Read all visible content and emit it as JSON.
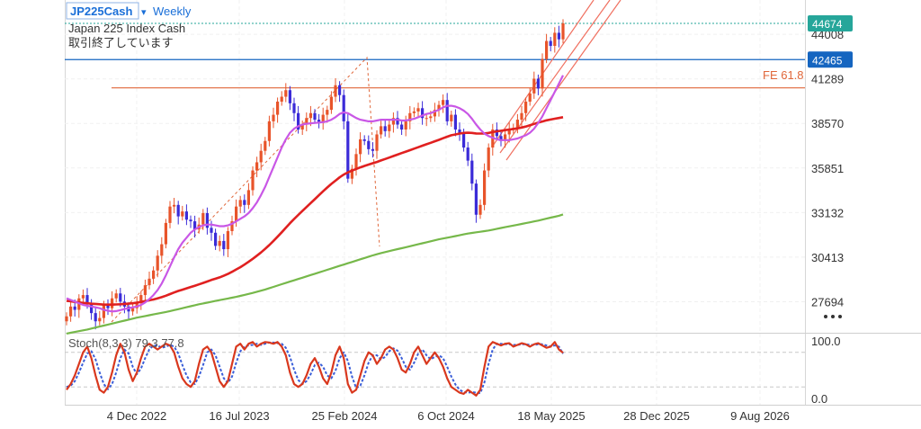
{
  "header": {
    "symbol": "JP225Cash",
    "dropdown_glyph": "▾",
    "interval": "Weekly",
    "description": "Japan 225 Index Cash",
    "status": "取引終了しています"
  },
  "price_badges": {
    "last": "44674",
    "level": "42465",
    "last_color": "#26a69a",
    "level_color": "#1565c0"
  },
  "fib_label": "FE 61.8",
  "more_icon": "more-horizontal-icon",
  "stoch_label": "Stoch(8,3,3) 79.3 77.8",
  "colors": {
    "up": "#e8542a",
    "down": "#3b2bd8",
    "ma_red": "#e02020",
    "ma_green": "#76b84a",
    "ma_violet": "#c957e6",
    "fib_line": "#e0673a",
    "channel": "#f07060",
    "stoch_k": "#d9381e",
    "stoch_d": "#3a5ed8"
  },
  "chart_data": [
    {
      "type": "candlestick",
      "x_ticks": [
        "4 Dec 2022",
        "16 Jul 2023",
        "25 Feb 2024",
        "6 Oct 2024",
        "18 May 2025",
        "28 Dec 2025",
        "9 Aug 2026"
      ],
      "y_ticks": [
        27694,
        30413,
        33132,
        35851,
        38570,
        41289,
        44008
      ],
      "ylim": [
        25800,
        46100
      ],
      "horizontal_levels": [
        44674,
        42465,
        40740
      ],
      "candles_close": [
        26800,
        27400,
        27200,
        27900,
        28100,
        27600,
        27000,
        26500,
        26700,
        27500,
        27300,
        27900,
        28200,
        27700,
        27400,
        27100,
        27300,
        27600,
        28100,
        28700,
        29100,
        29600,
        30500,
        31200,
        32500,
        33500,
        33600,
        32900,
        33200,
        32700,
        32600,
        32100,
        32400,
        33100,
        32200,
        31900,
        31100,
        31400,
        30900,
        32000,
        32600,
        33500,
        33900,
        33600,
        34500,
        35700,
        36200,
        36900,
        37500,
        38700,
        39100,
        39900,
        40200,
        40600,
        39800,
        39200,
        38200,
        38500,
        38900,
        39200,
        38800,
        38600,
        39100,
        39400,
        40200,
        40900,
        40300,
        38700,
        35200,
        35800,
        36700,
        37600,
        37500,
        37000,
        36900,
        37900,
        38400,
        38100,
        38500,
        38900,
        38500,
        38200,
        38700,
        39200,
        39300,
        39500,
        38900,
        38900,
        39000,
        39400,
        39700,
        40000,
        38700,
        39100,
        38200,
        38000,
        37100,
        36300,
        34900,
        33000,
        33600,
        35700,
        37100,
        38200,
        37800,
        37500,
        37900,
        38200,
        38300,
        38800,
        39200,
        39900,
        40400,
        41300,
        40700,
        42500,
        43600,
        43300,
        44100,
        43700,
        44674
      ],
      "ma_red": [
        27750,
        27720,
        27680,
        27650,
        27620,
        27600,
        27570,
        27560,
        27540,
        27520,
        27520,
        27520,
        27530,
        27540,
        27560,
        27580,
        27600,
        27640,
        27680,
        27730,
        27780,
        27830,
        27900,
        27970,
        28060,
        28160,
        28260,
        28350,
        28430,
        28510,
        28590,
        28670,
        28750,
        28840,
        28930,
        29020,
        29100,
        29180,
        29280,
        29390,
        29520,
        29660,
        29800,
        29960,
        30130,
        30310,
        30500,
        30700,
        30920,
        31150,
        31400,
        31660,
        31930,
        32210,
        32480,
        32740,
        32990,
        33230,
        33470,
        33710,
        33950,
        34190,
        34430,
        34660,
        34880,
        35080,
        35280,
        35450,
        35580,
        35690,
        35790,
        35890,
        35980,
        36060,
        36140,
        36220,
        36310,
        36400,
        36490,
        36580,
        36670,
        36760,
        36850,
        36940,
        37030,
        37120,
        37210,
        37300,
        37390,
        37480,
        37570,
        37670,
        37760,
        37850,
        37900,
        37950,
        37990,
        38000,
        37990,
        37960,
        37950,
        37960,
        37990,
        38040,
        38090,
        38120,
        38160,
        38200,
        38230,
        38270,
        38320,
        38380,
        38460,
        38540,
        38620,
        38690,
        38760,
        38810,
        38860,
        38900,
        38950
      ],
      "ma_green": [
        25750,
        25800,
        25850,
        25900,
        25950,
        26000,
        26060,
        26120,
        26180,
        26240,
        26300,
        26360,
        26420,
        26480,
        26540,
        26600,
        26660,
        26720,
        26770,
        26820,
        26870,
        26920,
        26970,
        27020,
        27070,
        27120,
        27180,
        27240,
        27300,
        27360,
        27420,
        27480,
        27540,
        27590,
        27640,
        27690,
        27740,
        27790,
        27840,
        27890,
        27940,
        27990,
        28050,
        28110,
        28170,
        28230,
        28300,
        28370,
        28440,
        28520,
        28600,
        28680,
        28760,
        28840,
        28920,
        29000,
        29080,
        29160,
        29240,
        29320,
        29400,
        29480,
        29560,
        29640,
        29720,
        29800,
        29880,
        29960,
        30040,
        30120,
        30200,
        30280,
        30360,
        30440,
        30520,
        30590,
        30660,
        30720,
        30780,
        30840,
        30900,
        30960,
        31020,
        31080,
        31140,
        31200,
        31260,
        31320,
        31380,
        31440,
        31500,
        31550,
        31600,
        31650,
        31700,
        31750,
        31800,
        31850,
        31890,
        31930,
        31960,
        32000,
        32040,
        32090,
        32140,
        32190,
        32240,
        32290,
        32340,
        32390,
        32440,
        32490,
        32540,
        32590,
        32640,
        32700,
        32760,
        32820,
        32880,
        32940,
        33020
      ],
      "ma_violet": [
        27900,
        27800,
        27700,
        27600,
        27500,
        27450,
        27400,
        27350,
        27300,
        27200,
        27150,
        27100,
        27120,
        27180,
        27250,
        27300,
        27350,
        27400,
        27500,
        27650,
        27850,
        28100,
        28400,
        28800,
        29300,
        29850,
        30400,
        30900,
        31300,
        31600,
        31900,
        32100,
        32250,
        32350,
        32400,
        32400,
        32350,
        32300,
        32300,
        32350,
        32450,
        32600,
        32750,
        32900,
        33100,
        33400,
        33750,
        34200,
        34700,
        35300,
        35900,
        36500,
        37100,
        37600,
        38000,
        38250,
        38400,
        38500,
        38550,
        38580,
        38600,
        38620,
        38650,
        38700,
        38800,
        38950,
        39150,
        39250,
        39200,
        39050,
        38900,
        38800,
        38750,
        38700,
        38700,
        38750,
        38800,
        38800,
        38800,
        38800,
        38800,
        38750,
        38750,
        38800,
        38850,
        38950,
        39050,
        39150,
        39200,
        39300,
        39400,
        39550,
        39650,
        39650,
        39600,
        39500,
        39350,
        39150,
        38850,
        38500,
        38200,
        37950,
        37800,
        37700,
        37600,
        37550,
        37550,
        37550,
        37600,
        37650,
        37750,
        37850,
        38000,
        38250,
        38600,
        39000,
        39500,
        40000,
        40500,
        41000,
        41500
      ],
      "stoch_k": [
        15,
        25,
        40,
        60,
        80,
        90,
        70,
        40,
        15,
        10,
        20,
        45,
        75,
        95,
        80,
        50,
        30,
        45,
        70,
        90,
        95,
        90,
        85,
        90,
        95,
        92,
        80,
        55,
        35,
        25,
        20,
        30,
        60,
        85,
        90,
        80,
        55,
        30,
        20,
        30,
        60,
        90,
        95,
        85,
        95,
        98,
        90,
        95,
        98,
        97,
        95,
        98,
        90,
        75,
        45,
        25,
        20,
        25,
        40,
        60,
        70,
        55,
        35,
        25,
        45,
        75,
        90,
        70,
        25,
        10,
        15,
        40,
        65,
        80,
        75,
        60,
        70,
        85,
        90,
        85,
        70,
        50,
        45,
        60,
        80,
        90,
        75,
        60,
        70,
        80,
        70,
        55,
        35,
        20,
        15,
        10,
        8,
        15,
        10,
        5,
        15,
        55,
        90,
        98,
        95,
        92,
        95,
        96,
        90,
        93,
        96,
        94,
        90,
        94,
        96,
        92,
        88,
        90,
        98,
        85,
        79.3
      ],
      "stoch_d": [
        20,
        22,
        30,
        45,
        62,
        78,
        82,
        68,
        45,
        25,
        16,
        25,
        45,
        70,
        85,
        78,
        55,
        42,
        52,
        70,
        85,
        92,
        92,
        88,
        90,
        93,
        90,
        78,
        58,
        40,
        28,
        25,
        38,
        58,
        80,
        85,
        75,
        55,
        35,
        27,
        38,
        62,
        82,
        90,
        92,
        93,
        95,
        93,
        95,
        97,
        97,
        96,
        95,
        88,
        72,
        50,
        32,
        25,
        30,
        42,
        58,
        62,
        55,
        40,
        35,
        48,
        70,
        80,
        65,
        38,
        18,
        22,
        40,
        62,
        75,
        75,
        68,
        72,
        82,
        87,
        83,
        70,
        55,
        50,
        62,
        78,
        85,
        75,
        68,
        72,
        75,
        70,
        55,
        38,
        24,
        15,
        11,
        10,
        11,
        10,
        9,
        28,
        60,
        85,
        95,
        95,
        94,
        94,
        93,
        93,
        94,
        94,
        93,
        93,
        94,
        94,
        92,
        90,
        92,
        90,
        77.8
      ],
      "stoch_ylim": [
        0,
        100
      ],
      "stoch_ticks": [
        "100.0",
        "0.0"
      ]
    }
  ]
}
